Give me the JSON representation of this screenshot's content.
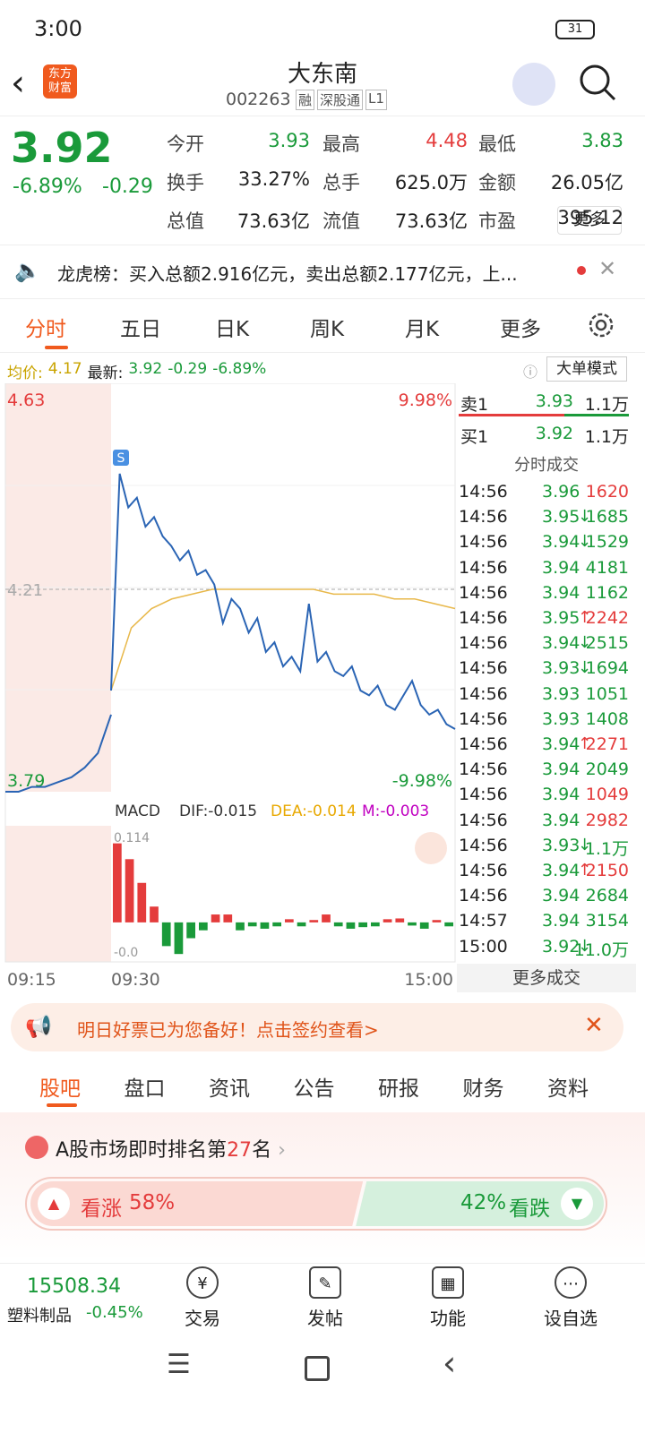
{
  "status": {
    "time": "3:00",
    "battery": "31"
  },
  "header": {
    "name": "大东南",
    "code": "002263",
    "tags": [
      "融",
      "深股通",
      "L1"
    ],
    "logo": "东方\n财富"
  },
  "quote": {
    "price": "3.92",
    "change_pct": "-6.89%",
    "change": "-0.29",
    "fields": [
      {
        "label": "今开",
        "value": "3.93",
        "color": "#1a9a3a"
      },
      {
        "label": "最高",
        "value": "4.48",
        "color": "#e43c3c"
      },
      {
        "label": "最低",
        "value": "3.83",
        "color": "#1a9a3a"
      },
      {
        "label": "换手",
        "value": "33.27%",
        "color": "#222"
      },
      {
        "label": "总手",
        "value": "625.0万",
        "color": "#222"
      },
      {
        "label": "金额",
        "value": "26.05亿",
        "color": "#222"
      },
      {
        "label": "总值",
        "value": "73.63亿",
        "color": "#222"
      },
      {
        "label": "流值",
        "value": "73.63亿",
        "color": "#222"
      },
      {
        "label": "市盈",
        "value": "395.12",
        "color": "#222"
      }
    ],
    "more": "更多"
  },
  "notice": "龙虎榜：买入总额2.916亿元，卖出总额2.177亿元，上...",
  "tabs": [
    "分时",
    "五日",
    "日K",
    "周K",
    "月K",
    "更多"
  ],
  "info": {
    "avg_label": "均价:",
    "avg": "4.17",
    "last_label": "最新:",
    "last": "3.92",
    "change": "-0.29",
    "change_pct": "-6.89%",
    "mode": "大单模式"
  },
  "intraday": {
    "ylim": [
      3.79,
      4.63
    ],
    "top_label": "4.63",
    "bottom_label": "3.79",
    "mid_label": "4.21",
    "mid": 4.21,
    "top_pct": "9.98%",
    "bottom_pct": "-9.98%",
    "signal": "S",
    "times": [
      "09:15",
      "09:30",
      "15:00"
    ],
    "premarket": [
      3.79,
      3.79,
      3.8,
      3.8,
      3.81,
      3.82,
      3.84,
      3.87,
      3.95
    ],
    "prices": [
      4.0,
      4.45,
      4.38,
      4.4,
      4.34,
      4.36,
      4.32,
      4.3,
      4.27,
      4.29,
      4.24,
      4.25,
      4.22,
      4.14,
      4.19,
      4.17,
      4.12,
      4.15,
      4.08,
      4.1,
      4.05,
      4.07,
      4.04,
      4.18,
      4.06,
      4.08,
      4.04,
      4.03,
      4.05,
      4.0,
      3.99,
      4.01,
      3.97,
      3.96,
      3.99,
      4.02,
      3.97,
      3.95,
      3.96,
      3.93,
      3.92
    ],
    "avg": [
      4.0,
      4.13,
      4.17,
      4.19,
      4.2,
      4.21,
      4.21,
      4.21,
      4.21,
      4.21,
      4.21,
      4.2,
      4.2,
      4.2,
      4.19,
      4.19,
      4.18,
      4.17
    ]
  },
  "macd": {
    "name": "MACD",
    "dif": "DIF:-0.015",
    "dea": "DEA:-0.014",
    "m": "M:-0.003",
    "top_label": "0.114",
    "bottom_label": "-0.0",
    "ylim": [
      -0.05,
      0.12
    ],
    "hist": [
      0.1,
      0.08,
      0.05,
      0.02,
      -0.03,
      -0.04,
      -0.02,
      -0.01,
      0.01,
      0.01,
      -0.01,
      -0.005,
      -0.008,
      -0.005,
      0.004,
      -0.005,
      0.003,
      0.01,
      -0.005,
      -0.008,
      -0.006,
      -0.005,
      0.004,
      0.005,
      -0.004,
      -0.008,
      0.003,
      -0.005
    ]
  },
  "orderbook": [
    {
      "label": "卖1",
      "price": "3.93",
      "volume": "1.1万"
    },
    {
      "label": "买1",
      "price": "3.92",
      "volume": "1.1万"
    }
  ],
  "trades_title": "分时成交",
  "trades": [
    {
      "time": "14:56",
      "price": "3.96",
      "arrow": "",
      "volume": "1620",
      "color": "#e43c3c"
    },
    {
      "time": "14:56",
      "price": "3.95",
      "arrow": "↓",
      "volume": "1685",
      "color": "#1a9a3a"
    },
    {
      "time": "14:56",
      "price": "3.94",
      "arrow": "↓",
      "volume": "1529",
      "color": "#1a9a3a"
    },
    {
      "time": "14:56",
      "price": "3.94",
      "arrow": "",
      "volume": "4181",
      "color": "#1a9a3a"
    },
    {
      "time": "14:56",
      "price": "3.94",
      "arrow": "",
      "volume": "1162",
      "color": "#1a9a3a"
    },
    {
      "time": "14:56",
      "price": "3.95",
      "arrow": "↑",
      "volume": "2242",
      "color": "#e43c3c"
    },
    {
      "time": "14:56",
      "price": "3.94",
      "arrow": "↓",
      "volume": "2515",
      "color": "#1a9a3a"
    },
    {
      "time": "14:56",
      "price": "3.93",
      "arrow": "↓",
      "volume": "1694",
      "color": "#1a9a3a"
    },
    {
      "time": "14:56",
      "price": "3.93",
      "arrow": "",
      "volume": "1051",
      "color": "#1a9a3a"
    },
    {
      "time": "14:56",
      "price": "3.93",
      "arrow": "",
      "volume": "1408",
      "color": "#1a9a3a"
    },
    {
      "time": "14:56",
      "price": "3.94",
      "arrow": "↑",
      "volume": "2271",
      "color": "#e43c3c"
    },
    {
      "time": "14:56",
      "price": "3.94",
      "arrow": "",
      "volume": "2049",
      "color": "#1a9a3a"
    },
    {
      "time": "14:56",
      "price": "3.94",
      "arrow": "",
      "volume": "1049",
      "color": "#e43c3c"
    },
    {
      "time": "14:56",
      "price": "3.94",
      "arrow": "",
      "volume": "2982",
      "color": "#e43c3c"
    },
    {
      "time": "14:56",
      "price": "3.93",
      "arrow": "↓",
      "volume": "1.1万",
      "color": "#1a9a3a"
    },
    {
      "time": "14:56",
      "price": "3.94",
      "arrow": "↑",
      "volume": "2150",
      "color": "#e43c3c"
    },
    {
      "time": "14:56",
      "price": "3.94",
      "arrow": "",
      "volume": "2684",
      "color": "#1a9a3a"
    },
    {
      "time": "14:57",
      "price": "3.94",
      "arrow": "",
      "volume": "3154",
      "color": "#1a9a3a"
    },
    {
      "time": "15:00",
      "price": "3.92",
      "arrow": "↓",
      "volume": "11.0万",
      "color": "#1a9a3a"
    }
  ],
  "more_trades": "更多成交",
  "ad": "明日好票已为您备好！点击签约查看>",
  "sections": [
    "股吧",
    "盘口",
    "资讯",
    "公告",
    "研报",
    "财务",
    "资料"
  ],
  "ranking": {
    "prefix": "A股市场即时排名第",
    "rank": "27",
    "suffix": "名"
  },
  "vote": {
    "labels": [
      "看涨",
      "看跌"
    ],
    "values": [
      58,
      42
    ],
    "value_labels": [
      "58%",
      "42%"
    ]
  },
  "footer": {
    "index": "15508.34",
    "sector": "塑料制品",
    "change": "-0.45%",
    "nav": [
      "交易",
      "发帖",
      "功能",
      "设自选"
    ]
  }
}
